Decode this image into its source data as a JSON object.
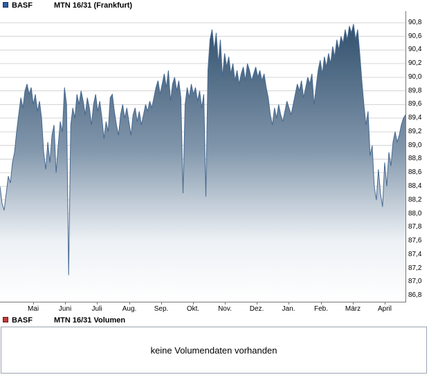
{
  "header": {
    "instrument": "BASF",
    "series_label": "MTN 16/31 (Frankfurt)",
    "legend_color": "#2d5fa6"
  },
  "volume_panel": {
    "instrument": "BASF",
    "series_label": "MTN 16/31 Volumen",
    "legend_color": "#c23b3b",
    "message": "keine Volumendaten vorhanden"
  },
  "chart_data": {
    "type": "area",
    "title": "BASF MTN 16/31 (Frankfurt)",
    "xlabel": "",
    "ylabel": "",
    "x_tick_labels": [
      "Mai",
      "Juni",
      "Juli",
      "Aug.",
      "Sep.",
      "Okt.",
      "Nov.",
      "Dez.",
      "Jan.",
      "Feb.",
      "März",
      "April"
    ],
    "y_tick_labels": [
      "90,8",
      "90,6",
      "90,4",
      "90,2",
      "90,0",
      "89,8",
      "89,6",
      "89,4",
      "89,2",
      "89,0",
      "88,8",
      "88,6",
      "88,4",
      "88,2",
      "88,0",
      "87,8",
      "87,6",
      "87,4",
      "87,2",
      "87,0",
      "86,8"
    ],
    "ylim": [
      86.8,
      90.8
    ],
    "grid": "horizontal",
    "grid_color": "#d4d4d4",
    "legend_position": "top-left",
    "line_color": "#46688f",
    "fill_gradient": [
      {
        "offset": 0,
        "color": "#31506d"
      },
      {
        "offset": 0.45,
        "color": "#8196ab"
      },
      {
        "offset": 0.78,
        "color": "#edf1f5"
      },
      {
        "offset": 1,
        "color": "#ffffff"
      }
    ],
    "values": [
      88.4,
      88.15,
      88.05,
      88.3,
      88.55,
      88.45,
      88.75,
      88.9,
      89.2,
      89.45,
      89.7,
      89.55,
      89.8,
      89.9,
      89.75,
      89.85,
      89.6,
      89.75,
      89.5,
      89.65,
      89.4,
      88.9,
      88.65,
      89.05,
      88.75,
      89.15,
      89.3,
      88.6,
      89.0,
      89.35,
      89.2,
      89.85,
      89.6,
      87.1,
      89.3,
      89.55,
      89.4,
      89.75,
      89.6,
      89.8,
      89.65,
      89.45,
      89.7,
      89.55,
      89.3,
      89.6,
      89.75,
      89.5,
      89.65,
      89.4,
      89.1,
      89.35,
      89.2,
      89.7,
      89.75,
      89.5,
      89.3,
      89.15,
      89.45,
      89.6,
      89.4,
      89.55,
      89.35,
      89.15,
      89.45,
      89.55,
      89.35,
      89.5,
      89.3,
      89.45,
      89.6,
      89.5,
      89.65,
      89.55,
      89.7,
      89.85,
      89.95,
      89.75,
      89.9,
      90.05,
      89.85,
      90.1,
      89.65,
      89.9,
      90.0,
      89.8,
      89.95,
      89.7,
      88.3,
      89.6,
      89.85,
      89.7,
      89.9,
      89.75,
      89.85,
      89.65,
      89.8,
      89.55,
      89.75,
      88.25,
      90.1,
      90.55,
      90.7,
      90.4,
      90.65,
      90.2,
      90.55,
      90.0,
      90.35,
      90.15,
      90.3,
      90.05,
      90.2,
      89.95,
      90.1,
      89.9,
      90.05,
      90.15,
      89.95,
      90.2,
      90.1,
      89.95,
      90.05,
      90.15,
      90.0,
      90.1,
      89.95,
      90.05,
      89.85,
      89.7,
      89.45,
      89.3,
      89.55,
      89.4,
      89.6,
      89.45,
      89.35,
      89.5,
      89.65,
      89.55,
      89.45,
      89.6,
      89.75,
      89.9,
      89.8,
      89.95,
      89.7,
      89.85,
      90.0,
      89.9,
      90.05,
      89.6,
      89.85,
      90.1,
      90.25,
      90.05,
      90.3,
      90.15,
      90.35,
      90.2,
      90.45,
      90.3,
      90.55,
      90.4,
      90.6,
      90.5,
      90.7,
      90.55,
      90.75,
      90.65,
      90.78,
      90.55,
      90.7,
      90.35,
      89.95,
      89.6,
      89.3,
      89.5,
      88.85,
      89.0,
      88.4,
      88.2,
      88.65,
      88.3,
      88.1,
      88.75,
      88.4,
      88.9,
      88.7,
      89.05,
      89.2,
      89.05,
      89.15,
      89.3,
      89.4,
      89.45
    ]
  }
}
